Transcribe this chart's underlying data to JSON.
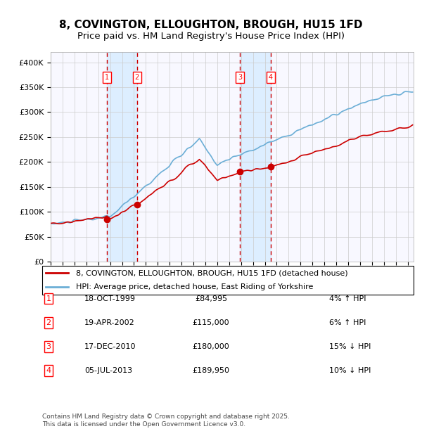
{
  "title": "8, COVINGTON, ELLOUGHTON, BROUGH, HU15 1FD",
  "subtitle": "Price paid vs. HM Land Registry's House Price Index (HPI)",
  "xlabel": "",
  "ylabel": "",
  "ylim": [
    0,
    420000
  ],
  "yticks": [
    0,
    50000,
    100000,
    150000,
    200000,
    250000,
    300000,
    350000,
    400000
  ],
  "ytick_labels": [
    "£0",
    "£50K",
    "£100K",
    "£150K",
    "£200K",
    "£250K",
    "£300K",
    "£350K",
    "£400K"
  ],
  "hpi_color": "#6baed6",
  "price_color": "#cc0000",
  "sale_marker_color": "#cc0000",
  "vline_color": "#cc0000",
  "shade_color": "#ddeeff",
  "background_color": "#ffffff",
  "grid_color": "#cccccc",
  "transactions": [
    {
      "date": "1999-10-18",
      "price": 84995,
      "label": "1"
    },
    {
      "date": "2002-04-19",
      "price": 115000,
      "label": "2"
    },
    {
      "date": "2010-12-17",
      "price": 180000,
      "label": "3"
    },
    {
      "date": "2013-07-05",
      "price": 189950,
      "label": "4"
    }
  ],
  "legend_entries": [
    {
      "label": "8, COVINGTON, ELLOUGHTON, BROUGH, HU15 1FD (detached house)",
      "color": "#cc0000"
    },
    {
      "label": "HPI: Average price, detached house, East Riding of Yorkshire",
      "color": "#6baed6"
    }
  ],
  "table_rows": [
    {
      "num": "1",
      "date": "18-OCT-1999",
      "price": "£84,995",
      "hpi": "4% ↑ HPI"
    },
    {
      "num": "2",
      "date": "19-APR-2002",
      "price": "£115,000",
      "hpi": "6% ↑ HPI"
    },
    {
      "num": "3",
      "date": "17-DEC-2010",
      "price": "£180,000",
      "hpi": "15% ↓ HPI"
    },
    {
      "num": "4",
      "date": "05-JUL-2013",
      "price": "£189,950",
      "hpi": "10% ↓ HPI"
    }
  ],
  "footnote": "Contains HM Land Registry data © Crown copyright and database right 2025.\nThis data is licensed under the Open Government Licence v3.0.",
  "title_fontsize": 11,
  "subtitle_fontsize": 9.5,
  "tick_fontsize": 8,
  "legend_fontsize": 8,
  "table_fontsize": 8,
  "footnote_fontsize": 6.5
}
